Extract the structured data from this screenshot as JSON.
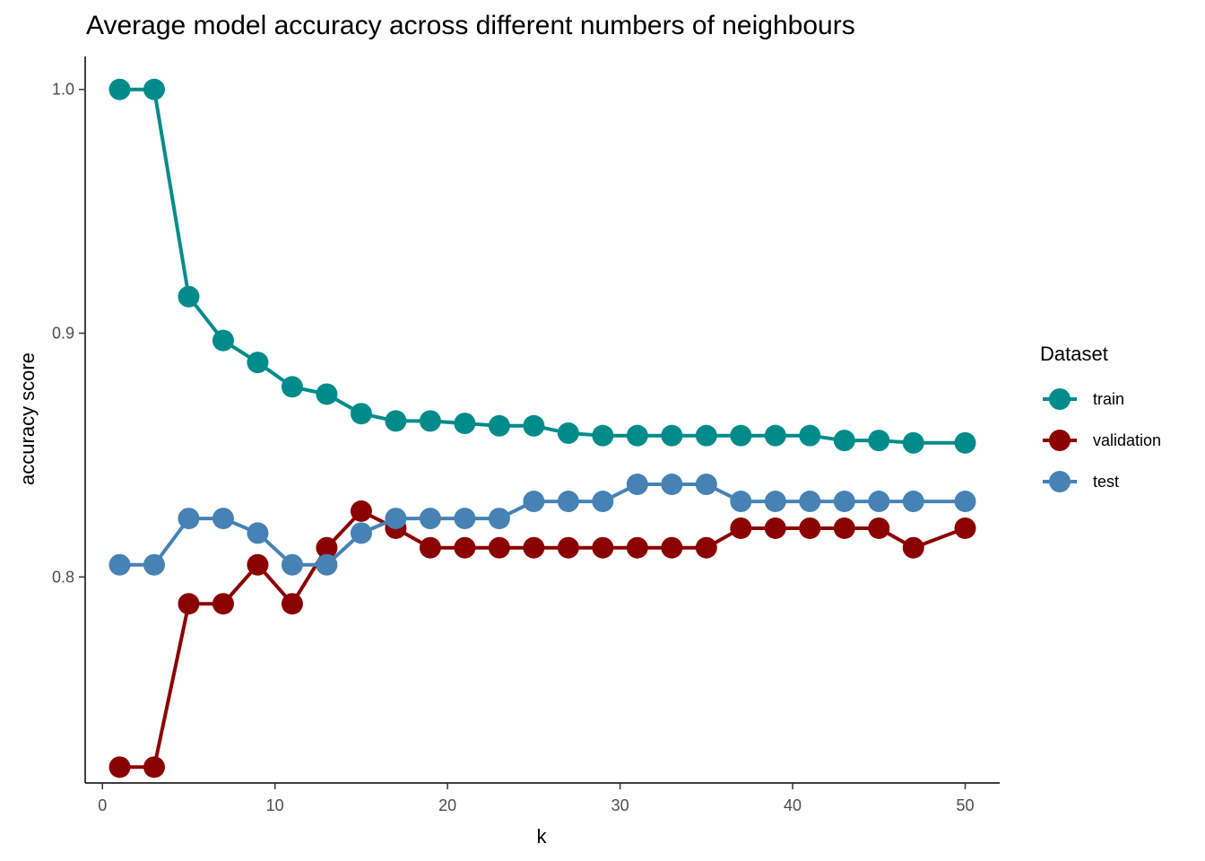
{
  "chart_data": {
    "type": "line",
    "title": "Average model accuracy across different numbers of neighbours",
    "xlabel": "k",
    "ylabel": "accuracy score",
    "xlim": [
      -1,
      52
    ],
    "ylim": [
      0.7155,
      1.0135
    ],
    "xticks": [
      0,
      10,
      20,
      30,
      40,
      50
    ],
    "xtick_labels": [
      "0",
      "10",
      "20",
      "30",
      "40",
      "50"
    ],
    "yticks": [
      0.8,
      0.9,
      1.0
    ],
    "ytick_labels": [
      "0.8",
      "0.9",
      "1.0"
    ],
    "grid": false,
    "legend": {
      "title": "Dataset",
      "placement": "right"
    },
    "x": [
      1,
      3,
      5,
      7,
      9,
      11,
      13,
      15,
      17,
      19,
      21,
      23,
      25,
      27,
      29,
      31,
      33,
      35,
      37,
      39,
      41,
      43,
      45,
      47,
      50
    ],
    "series": [
      {
        "name": "train",
        "color": "#008B8B",
        "values": [
          1.0,
          1.0,
          0.915,
          0.897,
          0.888,
          0.878,
          0.875,
          0.867,
          0.864,
          0.864,
          0.863,
          0.862,
          0.862,
          0.859,
          0.858,
          0.858,
          0.858,
          0.858,
          0.858,
          0.858,
          0.858,
          0.856,
          0.856,
          0.855,
          0.855
        ]
      },
      {
        "name": "validation",
        "color": "#8B0000",
        "values": [
          0.722,
          0.722,
          0.789,
          0.789,
          0.805,
          0.789,
          0.812,
          0.827,
          0.82,
          0.812,
          0.812,
          0.812,
          0.812,
          0.812,
          0.812,
          0.812,
          0.812,
          0.812,
          0.82,
          0.82,
          0.82,
          0.82,
          0.82,
          0.812,
          0.82
        ]
      },
      {
        "name": "test",
        "color": "#4682B4",
        "values": [
          0.805,
          0.805,
          0.824,
          0.824,
          0.818,
          0.805,
          0.805,
          0.818,
          0.824,
          0.824,
          0.824,
          0.824,
          0.831,
          0.831,
          0.831,
          0.838,
          0.838,
          0.838,
          0.831,
          0.831,
          0.831,
          0.831,
          0.831,
          0.831,
          0.831
        ]
      }
    ]
  }
}
